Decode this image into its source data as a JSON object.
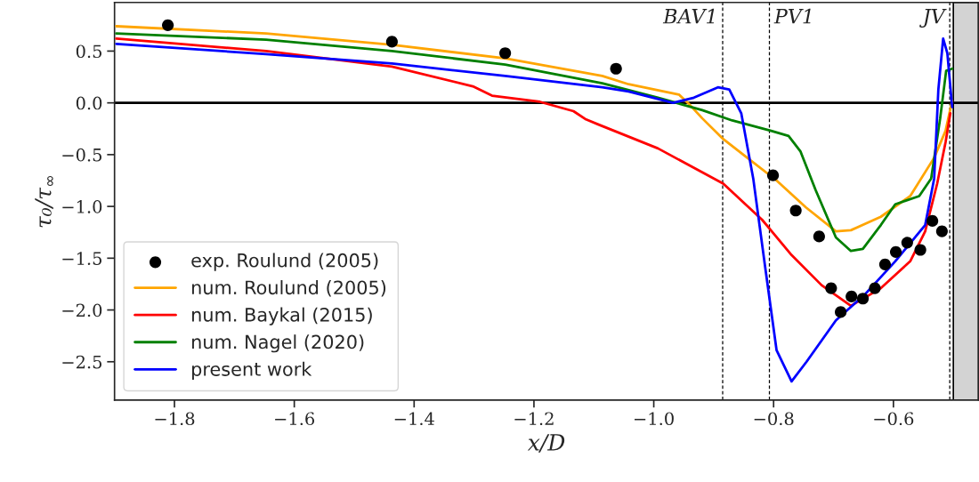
{
  "chart_data": {
    "type": "line",
    "xlabel": "x/D",
    "ylabel": "τ₀/τ$_{∞}$",
    "xlim": [
      -1.9,
      -0.458
    ],
    "ylim": [
      -2.87,
      0.97
    ],
    "xticks": [
      {
        "value": -1.8,
        "label": "−1.8"
      },
      {
        "value": -1.6,
        "label": "−1.6"
      },
      {
        "value": -1.4,
        "label": "−1.4"
      },
      {
        "value": -1.2,
        "label": "−1.2"
      },
      {
        "value": -1.0,
        "label": "−1.0"
      },
      {
        "value": -0.8,
        "label": "−0.8"
      },
      {
        "value": -0.6,
        "label": "−0.6"
      }
    ],
    "yticks": [
      0.5,
      {
        "value": 0.0,
        "label": "0.0"
      },
      {
        "value": -0.5,
        "label": "−0.5"
      },
      {
        "value": -1.0,
        "label": "−1.0"
      },
      {
        "value": -1.5,
        "label": "−1.5"
      },
      {
        "value": -2.0,
        "label": "−2.0"
      },
      {
        "value": -2.5,
        "label": "−2.5"
      }
    ],
    "grid": false,
    "legend": "bottom left",
    "series": [
      {
        "name": "exp. Roulund (2005)",
        "type": "scatter",
        "marker": "circle",
        "color": "#000000",
        "x": [
          -1.811,
          -1.437,
          -1.248,
          -1.063,
          -0.801,
          -0.763,
          -0.724,
          -0.704,
          -0.688,
          -0.67,
          -0.651,
          -0.631,
          -0.614,
          -0.596,
          -0.577,
          -0.555,
          -0.535,
          -0.519
        ],
        "values": [
          0.75,
          0.59,
          0.48,
          0.33,
          -0.7,
          -1.04,
          -1.29,
          -1.79,
          -2.02,
          -1.87,
          -1.89,
          -1.79,
          -1.56,
          -1.44,
          -1.35,
          -1.42,
          -1.14,
          -1.24
        ]
      },
      {
        "name": "num. Roulund (2005)",
        "color": "#ffa500",
        "x": [
          -1.897,
          -1.647,
          -1.437,
          -1.248,
          -1.086,
          -1.042,
          -0.958,
          -0.943,
          -0.919,
          -0.884,
          -0.844,
          -0.795,
          -0.746,
          -0.696,
          -0.671,
          -0.621,
          -0.572,
          -0.532,
          -0.513,
          -0.502
        ],
        "values": [
          0.74,
          0.67,
          0.56,
          0.43,
          0.26,
          0.18,
          0.08,
          0.0,
          -0.15,
          -0.35,
          -0.53,
          -0.75,
          -1.01,
          -1.24,
          -1.23,
          -1.1,
          -0.9,
          -0.53,
          -0.27,
          0.02
        ]
      },
      {
        "name": "num. Baykal (2015)",
        "color": "#ff0000",
        "x": [
          -1.897,
          -1.647,
          -1.437,
          -1.302,
          -1.27,
          -1.19,
          -1.134,
          -1.113,
          -1.092,
          -0.993,
          -0.884,
          -0.819,
          -0.77,
          -0.72,
          -0.671,
          -0.621,
          -0.572,
          -0.547,
          -0.527,
          -0.513,
          -0.505
        ],
        "values": [
          0.62,
          0.5,
          0.35,
          0.16,
          0.07,
          0.01,
          -0.08,
          -0.16,
          -0.21,
          -0.44,
          -0.78,
          -1.13,
          -1.47,
          -1.76,
          -1.96,
          -1.79,
          -1.53,
          -1.24,
          -0.78,
          -0.38,
          -0.1
        ]
      },
      {
        "name": "num. Nagel (2020)",
        "color": "#008000",
        "x": [
          -1.897,
          -1.647,
          -1.437,
          -1.248,
          -1.086,
          -0.993,
          -0.919,
          -0.869,
          -0.804,
          -0.775,
          -0.755,
          -0.73,
          -0.696,
          -0.671,
          -0.651,
          -0.621,
          -0.597,
          -0.557,
          -0.537,
          -0.522,
          -0.512,
          -0.502
        ],
        "values": [
          0.67,
          0.61,
          0.5,
          0.37,
          0.19,
          0.05,
          -0.07,
          -0.17,
          -0.27,
          -0.32,
          -0.47,
          -0.84,
          -1.3,
          -1.43,
          -1.41,
          -1.18,
          -0.98,
          -0.9,
          -0.73,
          -0.15,
          0.31,
          0.33
        ]
      },
      {
        "name": "present work",
        "color": "#0000ff",
        "x": [
          -1.897,
          -1.647,
          -1.437,
          -1.248,
          -1.086,
          -1.042,
          -0.968,
          -0.933,
          -0.893,
          -0.874,
          -0.854,
          -0.834,
          -0.814,
          -0.795,
          -0.77,
          -0.745,
          -0.696,
          -0.646,
          -0.597,
          -0.547,
          -0.532,
          -0.525,
          -0.517,
          -0.51,
          -0.502
        ],
        "values": [
          0.57,
          0.47,
          0.38,
          0.26,
          0.15,
          0.11,
          0.0,
          0.05,
          0.15,
          0.13,
          -0.1,
          -0.73,
          -1.59,
          -2.39,
          -2.69,
          -2.5,
          -2.1,
          -1.84,
          -1.53,
          -1.18,
          -0.73,
          0.13,
          0.62,
          0.48,
          -0.04
        ]
      }
    ],
    "ref_lines": [
      {
        "axis": "y",
        "value": 0.0,
        "color": "#000000",
        "line_style": "solid"
      },
      {
        "axis": "x",
        "value": -0.885,
        "label": "BAV1",
        "color": "#000000",
        "line_style": "dashed"
      },
      {
        "axis": "x",
        "value": -0.807,
        "label": "PV1",
        "color": "#000000",
        "line_style": "dashed"
      },
      {
        "axis": "x",
        "value": -0.506,
        "label": "JV",
        "color": "#000000",
        "line_style": "dashed"
      }
    ],
    "bands": [
      {
        "axis": "x",
        "from": -0.5,
        "to": -0.458,
        "color": "#d3d3d3"
      }
    ]
  }
}
